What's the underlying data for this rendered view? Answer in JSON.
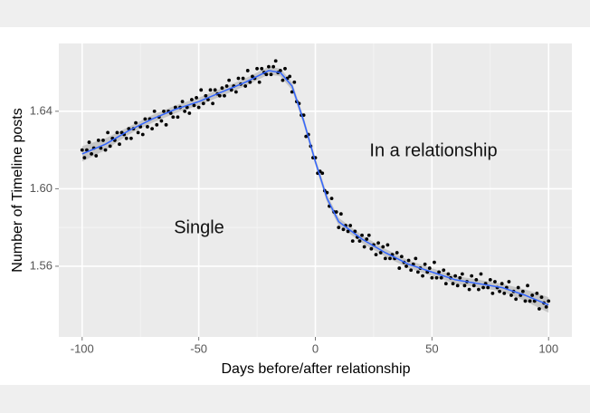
{
  "chart_data": {
    "type": "scatter",
    "xlabel": "Days before/after relationship",
    "ylabel": "Number of Timeline posts",
    "annotations": [
      "Single",
      "In a relationship"
    ],
    "xlim": [
      -110,
      110
    ],
    "xticks": [
      -100,
      -50,
      0,
      50,
      100
    ],
    "ylim": [
      1.5235,
      1.675
    ],
    "yticks": [
      1.56,
      {
        "value": 1.6,
        "label": "1.60"
      },
      1.64
    ],
    "grid": true,
    "color": "#000000",
    "x": [
      -100,
      -99,
      -98,
      -97,
      -96,
      -95,
      -94,
      -93,
      -92,
      -91,
      -90,
      -89,
      -88,
      -87,
      -86,
      -85,
      -84,
      -83,
      -82,
      -81,
      -80,
      -79,
      -78,
      -77,
      -76,
      -75,
      -74,
      -73,
      -72,
      -71,
      -70,
      -69,
      -68,
      -67,
      -66,
      -65,
      -64,
      -63,
      -62,
      -61,
      -60,
      -59,
      -58,
      -57,
      -56,
      -55,
      -54,
      -53,
      -52,
      -51,
      -50,
      -49,
      -48,
      -47,
      -46,
      -45,
      -44,
      -43,
      -42,
      -41,
      -40,
      -39,
      -38,
      -37,
      -36,
      -35,
      -34,
      -33,
      -32,
      -31,
      -30,
      -29,
      -28,
      -27,
      -26,
      -25,
      -24,
      -23,
      -22,
      -21,
      -20,
      -19,
      -18,
      -17,
      -16,
      -15,
      -14,
      -13,
      -12,
      -11,
      -10,
      -9,
      -8,
      -7,
      -6,
      -5,
      -4,
      -3,
      -2,
      -1,
      0,
      1,
      2,
      3,
      4,
      5,
      6,
      7,
      8,
      9,
      10,
      11,
      12,
      13,
      14,
      15,
      16,
      17,
      18,
      19,
      20,
      21,
      22,
      23,
      24,
      25,
      26,
      27,
      28,
      29,
      30,
      31,
      32,
      33,
      34,
      35,
      36,
      37,
      38,
      39,
      40,
      41,
      42,
      43,
      44,
      45,
      46,
      47,
      48,
      49,
      50,
      51,
      52,
      53,
      54,
      55,
      56,
      57,
      58,
      59,
      60,
      61,
      62,
      63,
      64,
      65,
      66,
      67,
      68,
      69,
      70,
      71,
      72,
      73,
      74,
      75,
      76,
      77,
      78,
      79,
      80,
      81,
      82,
      83,
      84,
      85,
      86,
      87,
      88,
      89,
      90,
      91,
      92,
      93,
      94,
      95,
      96,
      97,
      98,
      99,
      100
    ],
    "values": [
      1.62,
      1.616,
      1.62,
      1.624,
      1.618,
      1.621,
      1.617,
      1.625,
      1.621,
      1.625,
      1.62,
      1.629,
      1.622,
      1.626,
      1.625,
      1.629,
      1.623,
      1.629,
      1.628,
      1.626,
      1.631,
      1.626,
      1.631,
      1.634,
      1.629,
      1.632,
      1.628,
      1.636,
      1.632,
      1.636,
      1.631,
      1.64,
      1.633,
      1.637,
      1.635,
      1.64,
      1.633,
      1.64,
      1.639,
      1.637,
      1.642,
      1.637,
      1.642,
      1.645,
      1.64,
      1.642,
      1.639,
      1.646,
      1.643,
      1.647,
      1.642,
      1.651,
      1.644,
      1.648,
      1.646,
      1.651,
      1.644,
      1.651,
      1.649,
      1.648,
      1.652,
      1.648,
      1.653,
      1.656,
      1.651,
      1.653,
      1.65,
      1.657,
      1.654,
      1.657,
      1.653,
      1.661,
      1.655,
      1.658,
      1.657,
      1.662,
      1.655,
      1.662,
      1.66,
      1.659,
      1.663,
      1.659,
      1.663,
      1.666,
      1.66,
      1.661,
      1.656,
      1.662,
      1.657,
      1.658,
      1.65,
      1.655,
      1.645,
      1.644,
      1.638,
      1.638,
      1.627,
      1.628,
      1.622,
      1.616,
      1.616,
      1.608,
      1.609,
      1.608,
      1.599,
      1.598,
      1.591,
      1.595,
      1.588,
      1.588,
      1.58,
      1.587,
      1.579,
      1.581,
      1.578,
      1.581,
      1.573,
      1.578,
      1.575,
      1.573,
      1.576,
      1.57,
      1.574,
      1.576,
      1.569,
      1.571,
      1.566,
      1.572,
      1.567,
      1.57,
      1.564,
      1.571,
      1.564,
      1.566,
      1.564,
      1.567,
      1.559,
      1.565,
      1.562,
      1.56,
      1.563,
      1.558,
      1.561,
      1.564,
      1.557,
      1.559,
      1.555,
      1.561,
      1.557,
      1.559,
      1.554,
      1.562,
      1.554,
      1.557,
      1.554,
      1.558,
      1.551,
      1.556,
      1.554,
      1.551,
      1.555,
      1.55,
      1.554,
      1.556,
      1.55,
      1.552,
      1.548,
      1.555,
      1.55,
      1.553,
      1.548,
      1.556,
      1.549,
      1.551,
      1.549,
      1.553,
      1.546,
      1.552,
      1.549,
      1.547,
      1.551,
      1.546,
      1.549,
      1.552,
      1.545,
      1.547,
      1.543,
      1.549,
      1.545,
      1.547,
      1.542,
      1.55,
      1.542,
      1.545,
      1.542,
      1.546,
      1.538,
      1.544,
      1.541,
      1.539,
      1.542
    ],
    "smooth": {
      "color": "#3366ff",
      "band_color": "#999999",
      "x": [
        -100,
        -90,
        -80,
        -70,
        -60,
        -50,
        -40,
        -30,
        -20,
        -15,
        -10,
        -5,
        0,
        5,
        10,
        20,
        30,
        40,
        50,
        60,
        70,
        80,
        90,
        100
      ],
      "values": [
        1.618,
        1.623,
        1.63,
        1.636,
        1.641,
        1.645,
        1.65,
        1.655,
        1.661,
        1.66,
        1.653,
        1.635,
        1.614,
        1.595,
        1.583,
        1.574,
        1.567,
        1.561,
        1.557,
        1.553,
        1.551,
        1.549,
        1.545,
        1.54
      ],
      "lower": [
        1.614,
        1.62,
        1.628,
        1.634,
        1.639,
        1.643,
        1.648,
        1.653,
        1.659,
        1.658,
        1.651,
        1.633,
        1.612,
        1.593,
        1.581,
        1.572,
        1.565,
        1.559,
        1.555,
        1.551,
        1.549,
        1.547,
        1.542,
        1.536
      ],
      "upper": [
        1.622,
        1.626,
        1.632,
        1.638,
        1.643,
        1.647,
        1.652,
        1.657,
        1.663,
        1.662,
        1.655,
        1.637,
        1.616,
        1.597,
        1.585,
        1.576,
        1.569,
        1.563,
        1.559,
        1.555,
        1.553,
        1.551,
        1.548,
        1.544
      ]
    }
  }
}
